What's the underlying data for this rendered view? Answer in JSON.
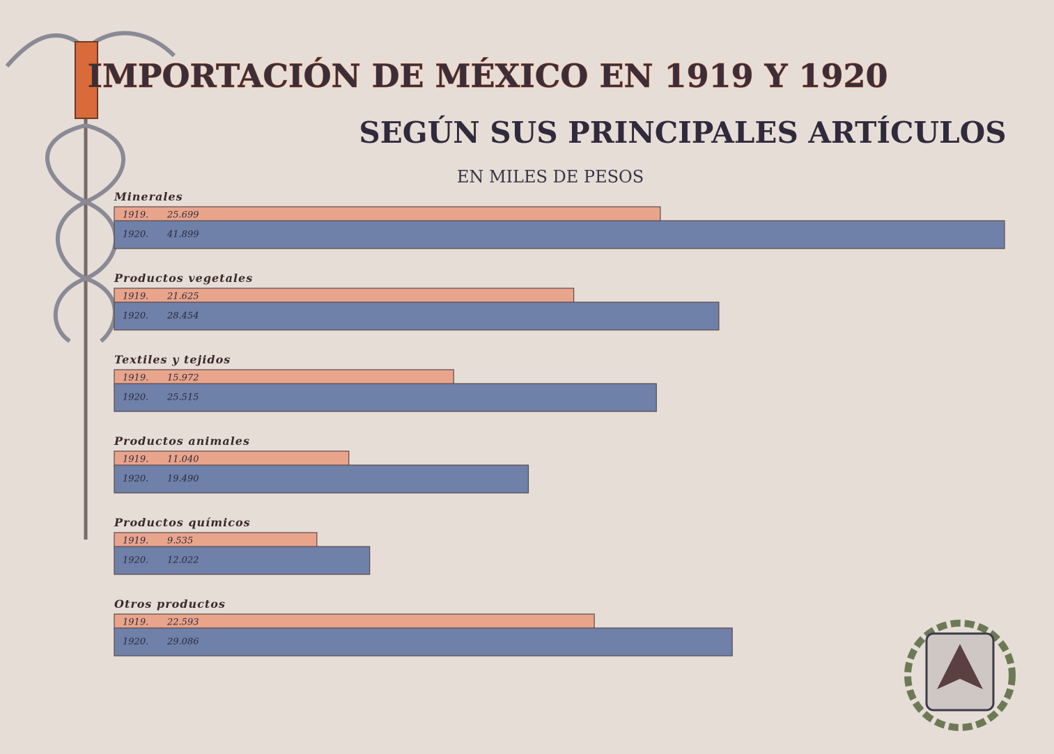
{
  "chart_data": {
    "type": "bar",
    "orientation": "horizontal",
    "title": "IMPORTACIÓN DE MÉXICO EN 1919 Y 1920",
    "subtitle": "SEGÚN SUS PRINCIPALES ARTÍCULOS",
    "unit_label": "EN MILES DE PESOS",
    "categories": [
      "Minerales",
      "Productos vegetales",
      "Textiles y tejidos",
      "Productos animales",
      "Productos químicos",
      "Otros productos"
    ],
    "series": [
      {
        "name": "1919.",
        "color": "#e9a48c",
        "values": [
          25699,
          21625,
          15972,
          11040,
          9535,
          22593
        ],
        "value_labels": [
          "25.699",
          "21.625",
          "15.972",
          "11.040",
          "9.535",
          "22.593"
        ]
      },
      {
        "name": "1920.",
        "color": "#6f80a9",
        "values": [
          41899,
          28454,
          25515,
          19490,
          12022,
          29086
        ],
        "value_labels": [
          "41.899",
          "28.454",
          "25.515",
          "19.490",
          "12.022",
          "29.086"
        ]
      }
    ]
  }
}
